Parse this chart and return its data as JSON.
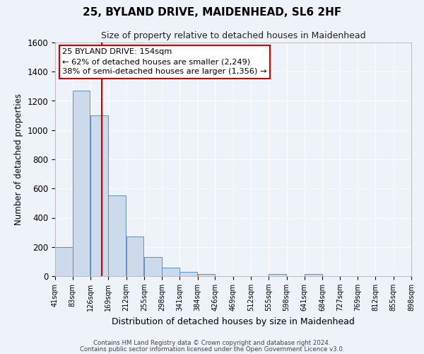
{
  "title": "25, BYLAND DRIVE, MAIDENHEAD, SL6 2HF",
  "subtitle": "Size of property relative to detached houses in Maidenhead",
  "xlabel": "Distribution of detached houses by size in Maidenhead",
  "ylabel": "Number of detached properties",
  "bar_color": "#cddaeb",
  "bar_edge_color": "#5a8fc3",
  "background_color": "#eef2f9",
  "grid_color": "#ffffff",
  "bin_edges": [
    41,
    83,
    126,
    169,
    212,
    255,
    298,
    341,
    384,
    426,
    469,
    512,
    555,
    598,
    641,
    684,
    727,
    769,
    812,
    855,
    898
  ],
  "bar_heights": [
    200,
    1270,
    1100,
    555,
    270,
    130,
    60,
    30,
    15,
    0,
    0,
    0,
    15,
    0,
    15,
    0,
    0,
    0,
    0,
    0
  ],
  "tick_labels": [
    "41sqm",
    "83sqm",
    "126sqm",
    "169sqm",
    "212sqm",
    "255sqm",
    "298sqm",
    "341sqm",
    "384sqm",
    "426sqm",
    "469sqm",
    "512sqm",
    "555sqm",
    "598sqm",
    "641sqm",
    "684sqm",
    "727sqm",
    "769sqm",
    "812sqm",
    "855sqm",
    "898sqm"
  ],
  "ylim": [
    0,
    1600
  ],
  "yticks": [
    0,
    200,
    400,
    600,
    800,
    1000,
    1200,
    1400,
    1600
  ],
  "property_line_x": 154,
  "annotation_title": "25 BYLAND DRIVE: 154sqm",
  "annotation_line1": "← 62% of detached houses are smaller (2,249)",
  "annotation_line2": "38% of semi-detached houses are larger (1,356) →",
  "annotation_box_color": "#ffffff",
  "annotation_box_edge": "#cc0000",
  "red_line_color": "#cc0000",
  "footer1": "Contains HM Land Registry data © Crown copyright and database right 2024.",
  "footer2": "Contains public sector information licensed under the Open Government Licence v3.0."
}
